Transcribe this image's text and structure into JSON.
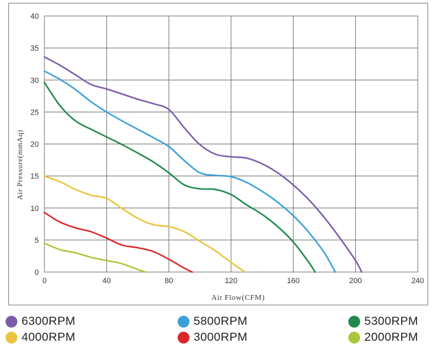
{
  "chart_data": {
    "type": "line",
    "xlabel": "Air Flow(CFM)",
    "ylabel": "Air Pressure(mmAq)",
    "xlim": [
      0,
      240
    ],
    "ylim": [
      0,
      40
    ],
    "xticks": [
      0,
      40,
      80,
      120,
      160,
      200,
      240
    ],
    "yticks": [
      0,
      5,
      10,
      15,
      20,
      25,
      30,
      35,
      40
    ],
    "grid": true,
    "legend_position": "bottom",
    "series": [
      {
        "name": "6300RPM",
        "color": "#7a5ba8",
        "points": [
          [
            0,
            33.6
          ],
          [
            10,
            32.3
          ],
          [
            20,
            30.8
          ],
          [
            30,
            29.3
          ],
          [
            40,
            28.6
          ],
          [
            50,
            27.8
          ],
          [
            60,
            27.0
          ],
          [
            70,
            26.3
          ],
          [
            80,
            25.4
          ],
          [
            90,
            22.5
          ],
          [
            100,
            19.9
          ],
          [
            110,
            18.4
          ],
          [
            120,
            18.0
          ],
          [
            130,
            17.8
          ],
          [
            140,
            16.9
          ],
          [
            150,
            15.5
          ],
          [
            160,
            13.6
          ],
          [
            170,
            11.3
          ],
          [
            180,
            8.5
          ],
          [
            190,
            5.3
          ],
          [
            200,
            1.8
          ],
          [
            204,
            0
          ]
        ]
      },
      {
        "name": "5800RPM",
        "color": "#3a9fd8",
        "points": [
          [
            0,
            31.4
          ],
          [
            10,
            30.1
          ],
          [
            20,
            28.5
          ],
          [
            30,
            26.6
          ],
          [
            40,
            25.0
          ],
          [
            50,
            23.6
          ],
          [
            60,
            22.3
          ],
          [
            70,
            21.0
          ],
          [
            80,
            19.6
          ],
          [
            90,
            17.4
          ],
          [
            100,
            15.5
          ],
          [
            110,
            15.1
          ],
          [
            120,
            14.9
          ],
          [
            130,
            14.0
          ],
          [
            140,
            12.6
          ],
          [
            150,
            10.9
          ],
          [
            160,
            8.8
          ],
          [
            170,
            6.2
          ],
          [
            180,
            3.0
          ],
          [
            187,
            0
          ]
        ]
      },
      {
        "name": "5300RPM",
        "color": "#1f8a4c",
        "points": [
          [
            0,
            29.6
          ],
          [
            10,
            26.0
          ],
          [
            20,
            23.6
          ],
          [
            30,
            22.3
          ],
          [
            40,
            21.1
          ],
          [
            50,
            19.9
          ],
          [
            60,
            18.6
          ],
          [
            70,
            17.2
          ],
          [
            80,
            15.5
          ],
          [
            90,
            13.6
          ],
          [
            100,
            13.0
          ],
          [
            110,
            12.9
          ],
          [
            120,
            12.1
          ],
          [
            130,
            10.5
          ],
          [
            140,
            9.0
          ],
          [
            150,
            7.1
          ],
          [
            160,
            4.7
          ],
          [
            170,
            1.5
          ],
          [
            174,
            0
          ]
        ]
      },
      {
        "name": "4000RPM",
        "color": "#ebc43d",
        "points": [
          [
            0,
            15.0
          ],
          [
            10,
            14.1
          ],
          [
            20,
            12.9
          ],
          [
            30,
            12.0
          ],
          [
            40,
            11.5
          ],
          [
            50,
            9.9
          ],
          [
            60,
            8.4
          ],
          [
            70,
            7.4
          ],
          [
            80,
            7.1
          ],
          [
            90,
            6.3
          ],
          [
            100,
            4.8
          ],
          [
            110,
            3.3
          ],
          [
            120,
            1.5
          ],
          [
            129,
            0
          ]
        ]
      },
      {
        "name": "3000RPM",
        "color": "#d9262b",
        "points": [
          [
            0,
            9.3
          ],
          [
            10,
            7.8
          ],
          [
            20,
            6.9
          ],
          [
            30,
            6.3
          ],
          [
            40,
            5.3
          ],
          [
            50,
            4.2
          ],
          [
            60,
            3.8
          ],
          [
            70,
            3.2
          ],
          [
            80,
            2.0
          ],
          [
            90,
            0.6
          ],
          [
            95,
            0
          ]
        ]
      },
      {
        "name": "2000RPM",
        "color": "#a8c73a",
        "points": [
          [
            0,
            4.5
          ],
          [
            10,
            3.5
          ],
          [
            20,
            3.0
          ],
          [
            30,
            2.3
          ],
          [
            40,
            1.8
          ],
          [
            50,
            1.3
          ],
          [
            60,
            0.4
          ],
          [
            65,
            0
          ]
        ]
      }
    ]
  }
}
